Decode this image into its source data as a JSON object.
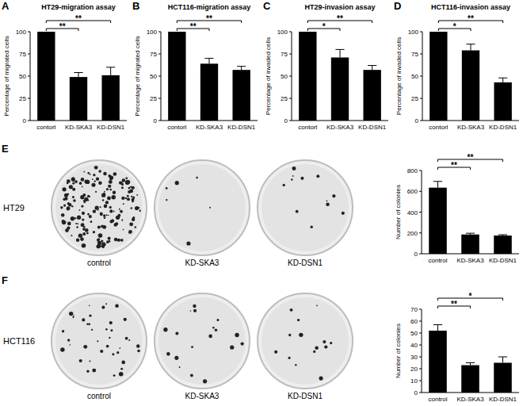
{
  "chart_data": [
    {
      "panel": "A",
      "type": "bar",
      "title": "HT29-migration assay",
      "ylabel": "Percentage of migrated cells",
      "categories": [
        "contorl",
        "KD-SKA3",
        "KD-DSN1"
      ],
      "values": [
        100,
        49,
        51
      ],
      "errors": [
        0,
        5,
        9
      ],
      "color": "#000000",
      "ylim": [
        0,
        100
      ],
      "yticks": [
        0,
        25,
        50,
        75,
        100
      ],
      "significance": [
        {
          "pair": [
            "contorl",
            "KD-SKA3"
          ],
          "label": "**"
        },
        {
          "pair": [
            "contorl",
            "KD-DSN1"
          ],
          "label": "**"
        }
      ]
    },
    {
      "panel": "B",
      "type": "bar",
      "title": "HCT116-migration assay",
      "ylabel": "Percentage of migrated cells",
      "categories": [
        "contorl",
        "KD-SKA3",
        "KD-DSN1"
      ],
      "values": [
        100,
        64,
        57
      ],
      "errors": [
        0,
        6,
        4
      ],
      "color": "#000000",
      "ylim": [
        0,
        100
      ],
      "yticks": [
        0,
        25,
        50,
        75,
        100
      ],
      "significance": [
        {
          "pair": [
            "contorl",
            "KD-SKA3"
          ],
          "label": "**"
        },
        {
          "pair": [
            "contorl",
            "KD-DSN1"
          ],
          "label": "**"
        }
      ]
    },
    {
      "panel": "C",
      "type": "bar",
      "title": "HT29-invasion assay",
      "ylabel": "Percentage of invaded cells",
      "categories": [
        "contorl",
        "KD-SKA3",
        "KD-DSN1"
      ],
      "values": [
        100,
        71,
        57
      ],
      "errors": [
        0,
        9,
        5
      ],
      "color": "#000000",
      "ylim": [
        0,
        100
      ],
      "yticks": [
        0,
        25,
        50,
        75,
        100
      ],
      "significance": [
        {
          "pair": [
            "contorl",
            "KD-SKA3"
          ],
          "label": "*"
        },
        {
          "pair": [
            "contorl",
            "KD-DSN1"
          ],
          "label": "**"
        }
      ]
    },
    {
      "panel": "D",
      "type": "bar",
      "title": "HCT116-invasion assay",
      "ylabel": "Percentage of invaded cells",
      "categories": [
        "contorl",
        "KD-SKA3",
        "KD-DSN1"
      ],
      "values": [
        100,
        79,
        43
      ],
      "errors": [
        0,
        7,
        5
      ],
      "color": "#000000",
      "ylim": [
        0,
        100
      ],
      "yticks": [
        0,
        25,
        50,
        75,
        100
      ],
      "significance": [
        {
          "pair": [
            "contorl",
            "KD-SKA3"
          ],
          "label": "*"
        },
        {
          "pair": [
            "contorl",
            "KD-DSN1"
          ],
          "label": "**"
        }
      ]
    },
    {
      "panel": "E",
      "type": "bar",
      "ylabel": "Number of colonies",
      "categories": [
        "control",
        "KD-SKA3",
        "KD-DSN1"
      ],
      "values": [
        635,
        185,
        175
      ],
      "errors": [
        60,
        12,
        8
      ],
      "color": "#000000",
      "ylim": [
        0,
        800
      ],
      "yticks": [
        0,
        200,
        400,
        600,
        800
      ],
      "significance": [
        {
          "pair": [
            "control",
            "KD-SKA3"
          ],
          "label": "**"
        },
        {
          "pair": [
            "control",
            "KD-DSN1"
          ],
          "label": "**"
        }
      ]
    },
    {
      "panel": "F",
      "type": "bar",
      "ylabel": "Number of colonies",
      "categories": [
        "control",
        "KD-SKA3",
        "KD-DSN1"
      ],
      "values": [
        52,
        23,
        25
      ],
      "errors": [
        5,
        2,
        5
      ],
      "color": "#000000",
      "ylim": [
        0,
        70
      ],
      "yticks": [
        0,
        10,
        20,
        30,
        40,
        50,
        60,
        70
      ],
      "significance": [
        {
          "pair": [
            "control",
            "KD-SKA3"
          ],
          "label": "**"
        },
        {
          "pair": [
            "control",
            "KD-DSN1"
          ],
          "label": "*"
        }
      ]
    }
  ],
  "images": [
    {
      "cell_line": "HT29",
      "labels": [
        "control",
        "KD-SKA3",
        "KD-DSN1"
      ]
    },
    {
      "cell_line": "HCT116",
      "labels": [
        "control",
        "KD-SKA3",
        "KD-DSN1"
      ]
    }
  ]
}
